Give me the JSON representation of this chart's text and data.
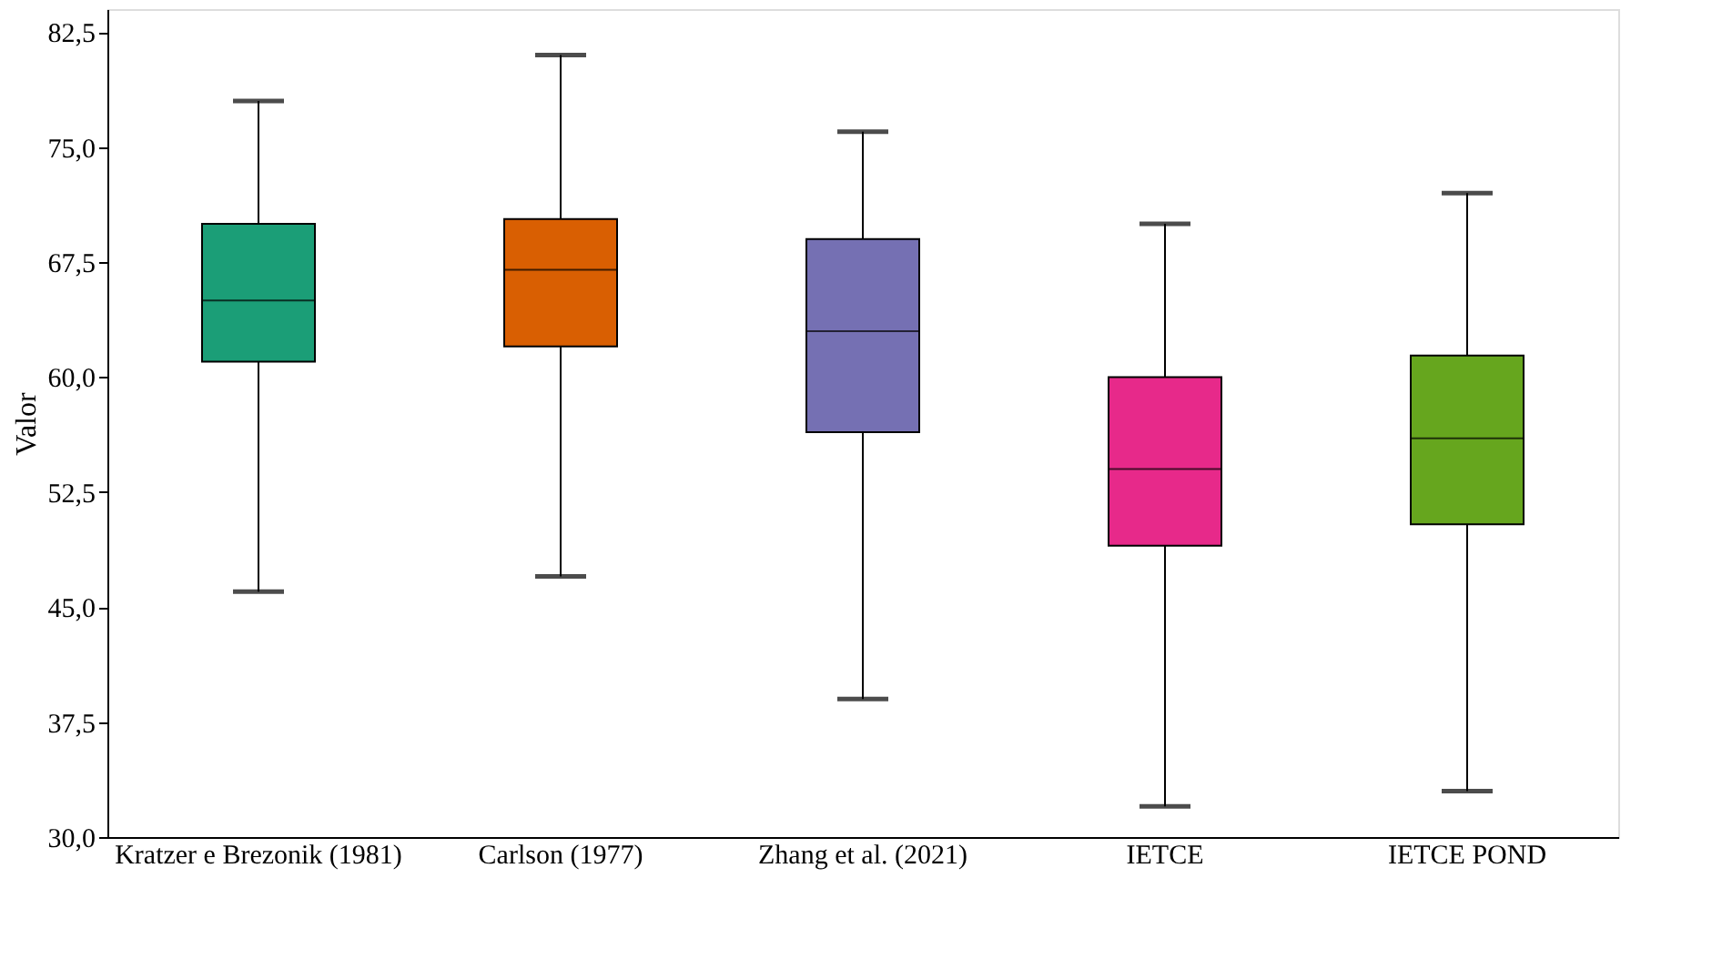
{
  "chart_data": {
    "type": "box",
    "ylabel": "Valor",
    "categories": [
      "Kratzer e Brezonik (1981)",
      "Carlson (1977)",
      "Zhang et al. (2021)",
      "IETCE",
      "IETCE POND"
    ],
    "colors": [
      "#1b9e77",
      "#d95f02",
      "#7570b3",
      "#e7298a",
      "#66a61e"
    ],
    "boxes": [
      {
        "low": 46,
        "q1": 61,
        "median": 65,
        "q3": 70,
        "high": 78
      },
      {
        "low": 47,
        "q1": 62,
        "median": 67,
        "q3": 70.3,
        "high": 81
      },
      {
        "low": 39,
        "q1": 56.4,
        "median": 63,
        "q3": 69,
        "high": 76
      },
      {
        "low": 32,
        "q1": 49,
        "median": 54,
        "q3": 60,
        "high": 70
      },
      {
        "low": 33,
        "q1": 50.4,
        "median": 56,
        "q3": 61.4,
        "high": 72
      }
    ],
    "ylim": [
      30,
      84
    ],
    "yticks": [
      {
        "value": 30,
        "label": "30,0"
      },
      {
        "value": 37.5,
        "label": "37,5"
      },
      {
        "value": 45,
        "label": "45,0"
      },
      {
        "value": 52.5,
        "label": "52,5"
      },
      {
        "value": 60,
        "label": "60,0"
      },
      {
        "value": 67.5,
        "label": "67,5"
      },
      {
        "value": 75,
        "label": "75,0"
      },
      {
        "value": 82.5,
        "label": "82,5"
      }
    ],
    "grid": false
  }
}
